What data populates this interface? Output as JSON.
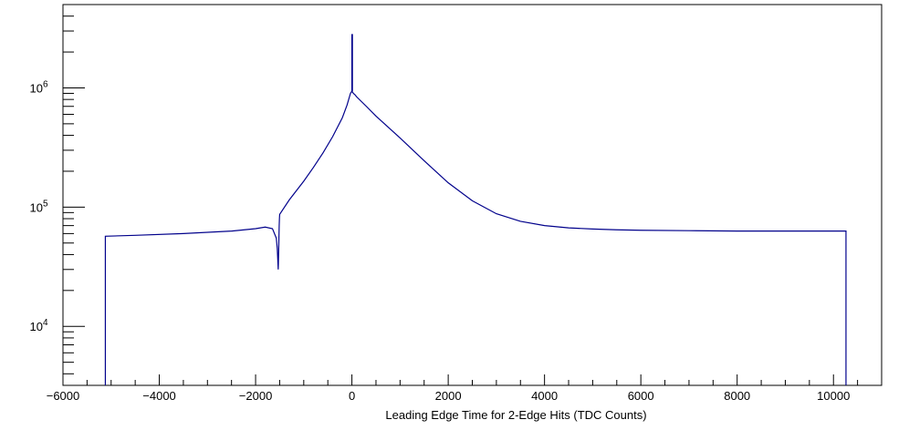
{
  "chart_data": {
    "type": "line",
    "style": "histogram-step",
    "xlabel": "Leading Edge Time for 2-Edge Hits (TDC Counts)",
    "ylabel": "",
    "xlim": [
      -6000,
      11000
    ],
    "ylim": [
      3200,
      5000000
    ],
    "yscale": "log",
    "grid": false,
    "line_color": "#00008b",
    "x_ticks": [
      {
        "value": -6000,
        "label": "−6000"
      },
      {
        "value": -4000,
        "label": "−4000"
      },
      {
        "value": -2000,
        "label": "−2000"
      },
      {
        "value": 0,
        "label": "0"
      },
      {
        "value": 2000,
        "label": "2000"
      },
      {
        "value": 4000,
        "label": "4000"
      },
      {
        "value": 6000,
        "label": "6000"
      },
      {
        "value": 8000,
        "label": "8000"
      },
      {
        "value": 10000,
        "label": "10000"
      }
    ],
    "y_ticks": [
      {
        "value": 10000,
        "base": "10",
        "exp": "4"
      },
      {
        "value": 100000,
        "base": "10",
        "exp": "5"
      },
      {
        "value": 1000000,
        "base": "10",
        "exp": "6"
      }
    ],
    "series": [
      {
        "x": [
          -5120,
          -5120,
          -4500,
          -3500,
          -2500,
          -2000,
          -1800,
          -1650,
          -1570,
          -1550,
          -1530,
          -1520,
          -1510,
          -1505,
          -1500,
          -1300,
          -1000,
          -800,
          -600,
          -400,
          -200,
          -100,
          -30,
          0,
          30,
          60,
          100,
          300,
          500,
          1000,
          1500,
          2000,
          2500,
          3000,
          3500,
          4000,
          4500,
          5000,
          5500,
          6000,
          7000,
          8000,
          9000,
          10000,
          10260,
          10260
        ],
        "y": [
          3200,
          57000,
          58000,
          60000,
          63000,
          66000,
          68000,
          66000,
          55000,
          45000,
          30000,
          45000,
          70000,
          80000,
          87000,
          115000,
          165000,
          215000,
          285000,
          390000,
          560000,
          720000,
          900000,
          940000,
          900000,
          880000,
          840000,
          700000,
          580000,
          380000,
          245000,
          160000,
          113000,
          88000,
          76000,
          70000,
          67000,
          65500,
          64500,
          64000,
          63500,
          63000,
          63000,
          63000,
          63000,
          3200
        ]
      },
      {
        "x": [
          0,
          0,
          10,
          10
        ],
        "y": [
          940000,
          2800000,
          2800000,
          940000
        ]
      }
    ]
  }
}
